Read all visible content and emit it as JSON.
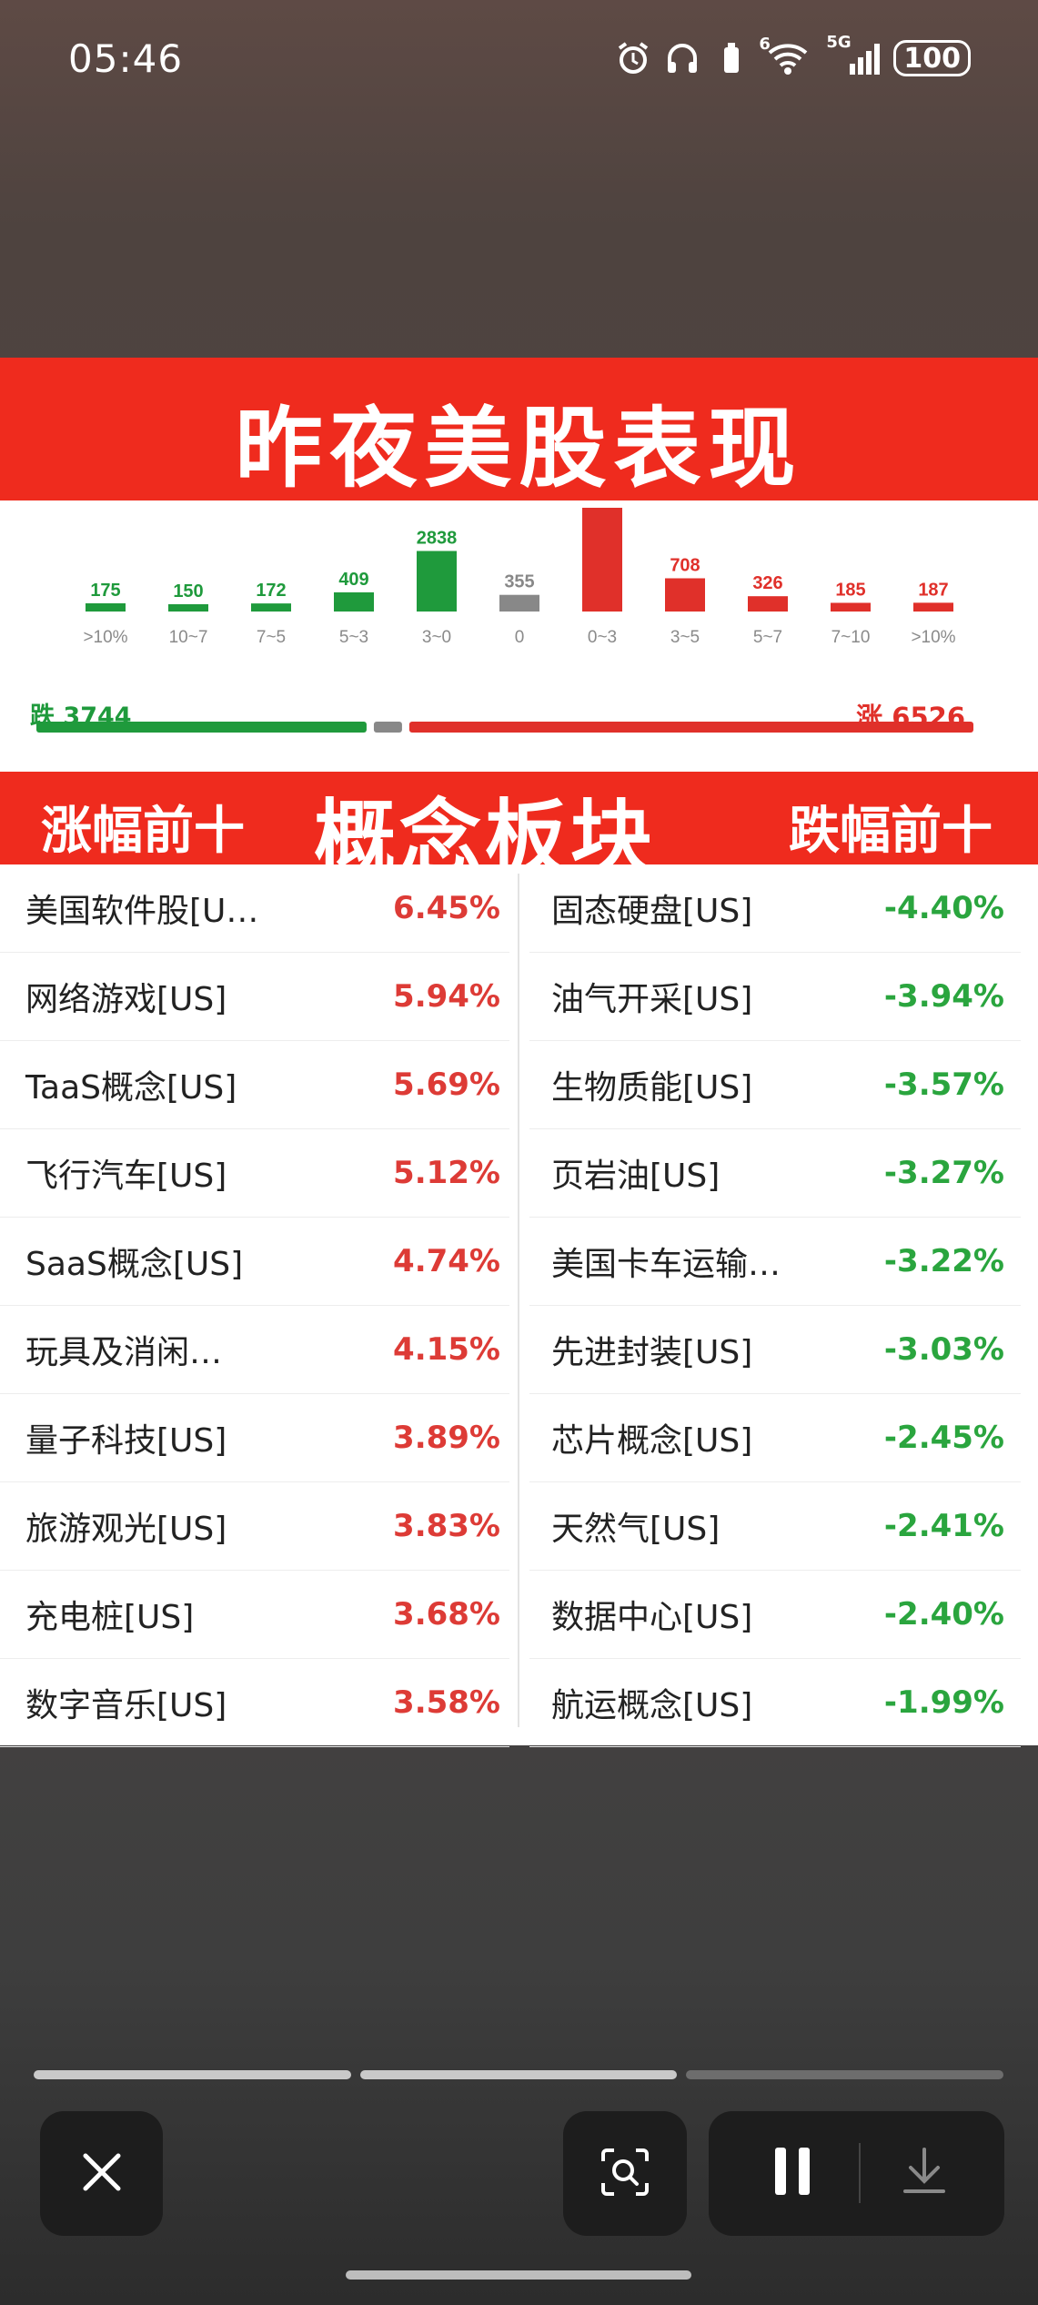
{
  "status_bar": {
    "time": "05:46",
    "network": "5G",
    "wifi_badge": "6",
    "battery": "100",
    "icons": [
      "alarm-icon",
      "headphones-icon",
      "battery-saver-icon",
      "wifi-icon",
      "signal-icon"
    ]
  },
  "post": {
    "title": "昨夜美股表现",
    "distribution": {
      "buckets": [
        {
          "range": ">10%",
          "count": "175",
          "value": 175,
          "side": "down"
        },
        {
          "range": "10~7",
          "count": "150",
          "value": 150,
          "side": "down"
        },
        {
          "range": "7~5",
          "count": "172",
          "value": 172,
          "side": "down"
        },
        {
          "range": "5~3",
          "count": "409",
          "value": 409,
          "side": "down"
        },
        {
          "range": "3~0",
          "count": "2838",
          "value": 2838,
          "side": "down"
        },
        {
          "range": "0",
          "count": "355",
          "value": 355,
          "side": "flat"
        },
        {
          "range": "0~3",
          "count": "5120",
          "value": 5120,
          "side": "up"
        },
        {
          "range": "3~5",
          "count": "708",
          "value": 708,
          "side": "up"
        },
        {
          "range": "5~7",
          "count": "326",
          "value": 326,
          "side": "up"
        },
        {
          "range": "7~10",
          "count": "185",
          "value": 185,
          "side": "up"
        },
        {
          "range": ">10%",
          "count": "187",
          "value": 187,
          "side": "up"
        }
      ],
      "down_label": "跌",
      "down_total": "3744",
      "up_label": "涨",
      "up_total": "6526",
      "colors": {
        "down": "#1f9a3c",
        "flat": "#888888",
        "up": "#e0302a"
      }
    },
    "section": {
      "left_title": "涨幅前十",
      "center_title": "概念板块",
      "right_title": "跌幅前十"
    },
    "gainers": [
      {
        "name": "美国软件股[U…",
        "change": "6.45%"
      },
      {
        "name": "网络游戏[US]",
        "change": "5.94%"
      },
      {
        "name": "TaaS概念[US]",
        "change": "5.69%"
      },
      {
        "name": "飞行汽车[US]",
        "change": "5.12%"
      },
      {
        "name": "SaaS概念[US]",
        "change": "4.74%"
      },
      {
        "name": "玩具及消闲…",
        "change": "4.15%"
      },
      {
        "name": "量子科技[US]",
        "change": "3.89%"
      },
      {
        "name": "旅游观光[US]",
        "change": "3.83%"
      },
      {
        "name": "充电桩[US]",
        "change": "3.68%"
      },
      {
        "name": "数字音乐[US]",
        "change": "3.58%"
      }
    ],
    "losers": [
      {
        "name": "固态硬盘[US]",
        "change": "-4.40%"
      },
      {
        "name": "油气开采[US]",
        "change": "-3.94%"
      },
      {
        "name": "生物质能[US]",
        "change": "-3.57%"
      },
      {
        "name": "页岩油[US]",
        "change": "-3.27%"
      },
      {
        "name": "美国卡车运输…",
        "change": "-3.22%"
      },
      {
        "name": "先进封装[US]",
        "change": "-3.03%"
      },
      {
        "name": "芯片概念[US]",
        "change": "-2.45%"
      },
      {
        "name": "天然气[US]",
        "change": "-2.41%"
      },
      {
        "name": "数据中心[US]",
        "change": "-2.40%"
      },
      {
        "name": "航运概念[US]",
        "change": "-1.99%"
      }
    ]
  },
  "viewer": {
    "progress_segments": [
      {
        "state": "viewed"
      },
      {
        "state": "viewed"
      },
      {
        "state": "unviewed"
      }
    ],
    "buttons": {
      "close": "close-icon",
      "lens": "lens-scan-icon",
      "pause": "pause-icon",
      "download": "download-icon"
    }
  }
}
